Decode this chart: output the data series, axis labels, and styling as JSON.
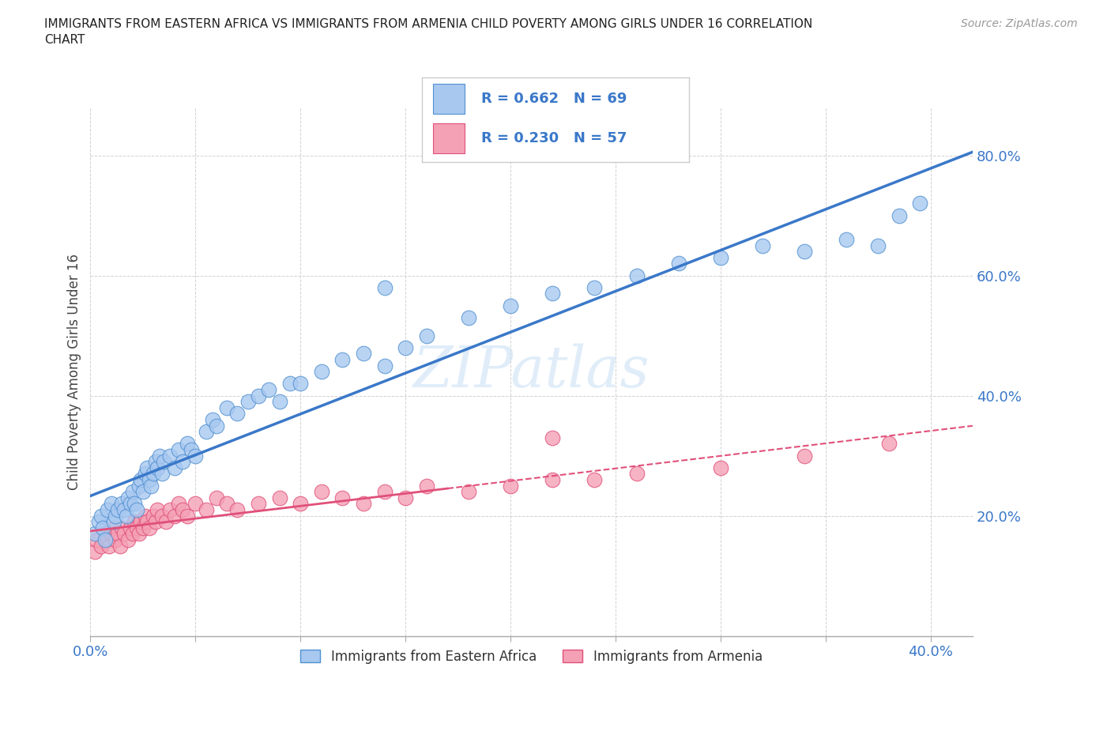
{
  "title": "IMMIGRANTS FROM EASTERN AFRICA VS IMMIGRANTS FROM ARMENIA CHILD POVERTY AMONG GIRLS UNDER 16 CORRELATION\nCHART",
  "source": "Source: ZipAtlas.com",
  "ylabel": "Child Poverty Among Girls Under 16",
  "xlim": [
    0.0,
    0.42
  ],
  "ylim": [
    0.0,
    0.88
  ],
  "x_ticks": [
    0.0,
    0.05,
    0.1,
    0.15,
    0.2,
    0.25,
    0.3,
    0.35,
    0.4
  ],
  "x_tick_labels": [
    "0.0%",
    "",
    "",
    "",
    "",
    "",
    "",
    "",
    "40.0%"
  ],
  "y_ticks": [
    0.0,
    0.2,
    0.4,
    0.6,
    0.8
  ],
  "y_tick_labels": [
    "",
    "20.0%",
    "40.0%",
    "60.0%",
    "80.0%"
  ],
  "R_eastern": 0.662,
  "N_eastern": 69,
  "R_armenia": 0.23,
  "N_armenia": 57,
  "color_eastern": "#a8c8f0",
  "color_armenia": "#f4a0b5",
  "edge_eastern": "#5090d0",
  "edge_armenia": "#e0507a",
  "trendline_eastern_color": "#3a78c9",
  "trendline_armenia_color": "#e0507a",
  "legend_label_eastern": "Immigrants from Eastern Africa",
  "legend_label_armenia": "Immigrants from Armenia",
  "watermark": "ZIPatlas",
  "eastern_x": [
    0.002,
    0.004,
    0.005,
    0.006,
    0.007,
    0.008,
    0.01,
    0.011,
    0.012,
    0.013,
    0.015,
    0.016,
    0.017,
    0.018,
    0.019,
    0.02,
    0.021,
    0.022,
    0.023,
    0.024,
    0.025,
    0.026,
    0.027,
    0.028,
    0.029,
    0.03,
    0.031,
    0.032,
    0.033,
    0.034,
    0.035,
    0.038,
    0.04,
    0.042,
    0.044,
    0.046,
    0.048,
    0.05,
    0.055,
    0.058,
    0.06,
    0.065,
    0.07,
    0.075,
    0.08,
    0.085,
    0.09,
    0.095,
    0.1,
    0.11,
    0.12,
    0.13,
    0.14,
    0.15,
    0.16,
    0.18,
    0.2,
    0.22,
    0.24,
    0.26,
    0.28,
    0.3,
    0.32,
    0.34,
    0.36,
    0.375,
    0.385,
    0.395,
    0.14
  ],
  "eastern_y": [
    0.17,
    0.19,
    0.2,
    0.18,
    0.16,
    0.21,
    0.22,
    0.19,
    0.2,
    0.21,
    0.22,
    0.21,
    0.2,
    0.23,
    0.22,
    0.24,
    0.22,
    0.21,
    0.25,
    0.26,
    0.24,
    0.27,
    0.28,
    0.26,
    0.25,
    0.27,
    0.29,
    0.28,
    0.3,
    0.27,
    0.29,
    0.3,
    0.28,
    0.31,
    0.29,
    0.32,
    0.31,
    0.3,
    0.34,
    0.36,
    0.35,
    0.38,
    0.37,
    0.39,
    0.4,
    0.41,
    0.39,
    0.42,
    0.42,
    0.44,
    0.46,
    0.47,
    0.45,
    0.48,
    0.5,
    0.53,
    0.55,
    0.57,
    0.58,
    0.6,
    0.62,
    0.63,
    0.65,
    0.64,
    0.66,
    0.65,
    0.7,
    0.72,
    0.58
  ],
  "armenia_x": [
    0.002,
    0.003,
    0.005,
    0.007,
    0.008,
    0.009,
    0.01,
    0.011,
    0.012,
    0.013,
    0.014,
    0.015,
    0.016,
    0.018,
    0.019,
    0.02,
    0.021,
    0.022,
    0.023,
    0.024,
    0.025,
    0.026,
    0.027,
    0.028,
    0.03,
    0.031,
    0.032,
    0.034,
    0.036,
    0.038,
    0.04,
    0.042,
    0.044,
    0.046,
    0.05,
    0.055,
    0.06,
    0.065,
    0.07,
    0.08,
    0.09,
    0.1,
    0.11,
    0.12,
    0.13,
    0.14,
    0.15,
    0.16,
    0.18,
    0.2,
    0.22,
    0.24,
    0.26,
    0.3,
    0.34,
    0.38,
    0.22
  ],
  "armenia_y": [
    0.14,
    0.16,
    0.15,
    0.17,
    0.16,
    0.15,
    0.17,
    0.18,
    0.16,
    0.17,
    0.15,
    0.18,
    0.17,
    0.16,
    0.18,
    0.17,
    0.19,
    0.18,
    0.17,
    0.19,
    0.18,
    0.2,
    0.19,
    0.18,
    0.2,
    0.19,
    0.21,
    0.2,
    0.19,
    0.21,
    0.2,
    0.22,
    0.21,
    0.2,
    0.22,
    0.21,
    0.23,
    0.22,
    0.21,
    0.22,
    0.23,
    0.22,
    0.24,
    0.23,
    0.22,
    0.24,
    0.23,
    0.25,
    0.24,
    0.25,
    0.26,
    0.26,
    0.27,
    0.28,
    0.3,
    0.32,
    0.33
  ],
  "eastern_trendline": [
    0.1,
    0.72
  ],
  "armenia_trendline_solid": [
    0.13,
    0.24
  ],
  "armenia_trendline_dashed": [
    0.24,
    0.33
  ]
}
